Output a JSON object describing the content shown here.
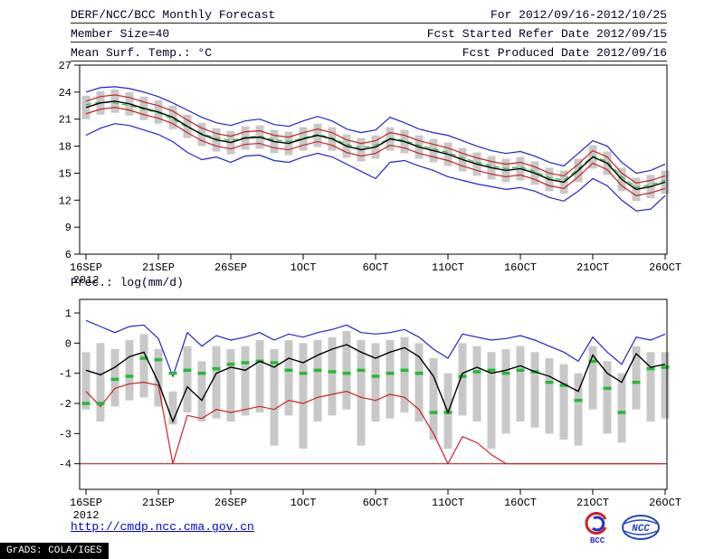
{
  "header": {
    "left": [
      "DERF/NCC/BCC Monthly Forecast",
      "Member Size=40",
      "Mean Surf. Temp.: °C"
    ],
    "right": [
      "For 2012/09/16-2012/10/25",
      "Fcst Started Refer Date 2012/09/15",
      "Fcst Produced Date 2012/09/16"
    ]
  },
  "footer": {
    "url": "http://cmdp.ncc.cma.gov.cn",
    "bcc_logo_label": "BCC",
    "ncc_logo_label": "NCC",
    "grads_credit": "GrADS: COLA/IGES"
  },
  "colors": {
    "blue": "#2222cc",
    "red": "#cc2222",
    "green": "#22bb33",
    "black": "#000000",
    "bar": "#c8c8c8",
    "frame": "#000000",
    "link": "#0000cc"
  },
  "chart_data": [
    {
      "id": "temperature",
      "type": "line",
      "title": "Mean Surf. Temp.: °C",
      "ylim": [
        6,
        27
      ],
      "yticks": [
        27,
        24,
        21,
        18,
        15,
        12,
        9,
        6
      ],
      "x_tick_days": [
        0,
        5,
        10,
        15,
        20,
        25,
        30,
        35,
        40
      ],
      "x_tick_labels": [
        "16SEP",
        "21SEP",
        "26SEP",
        "1OCT",
        "6OCT",
        "11OCT",
        "16OCT",
        "21OCT",
        "26OCT"
      ],
      "x_year_label": "2012",
      "grid": false,
      "bars": {
        "name": "ensemble-spread",
        "top": [
          23.6,
          24.1,
          24.3,
          24.0,
          23.5,
          23.1,
          22.5,
          21.5,
          20.6,
          20.0,
          19.7,
          20.2,
          20.3,
          19.8,
          19.6,
          20.1,
          20.5,
          20.1,
          19.3,
          18.9,
          19.2,
          20.1,
          19.8,
          19.2,
          18.8,
          18.4,
          17.8,
          17.3,
          16.9,
          16.6,
          16.8,
          16.3,
          15.6,
          15.3,
          16.6,
          18.1,
          17.4,
          15.6,
          14.5,
          14.8,
          15.3
        ],
        "bottom": [
          21.0,
          21.5,
          21.7,
          21.4,
          20.9,
          20.5,
          19.9,
          18.9,
          18.0,
          17.4,
          17.1,
          17.6,
          17.7,
          17.2,
          17.0,
          17.5,
          17.9,
          17.5,
          16.7,
          16.3,
          16.6,
          17.5,
          17.2,
          16.6,
          16.2,
          15.8,
          15.2,
          14.7,
          14.3,
          14.0,
          14.2,
          13.7,
          13.0,
          12.7,
          14.0,
          15.5,
          14.8,
          13.0,
          11.9,
          12.2,
          12.7
        ]
      },
      "series": [
        {
          "name": "ensemble-max",
          "color": "blue",
          "values": [
            24.0,
            24.5,
            24.6,
            24.4,
            24.0,
            23.5,
            22.8,
            22.0,
            21.2,
            20.6,
            20.3,
            20.8,
            21.0,
            20.4,
            20.2,
            20.8,
            21.3,
            20.8,
            19.9,
            19.5,
            19.8,
            21.2,
            20.6,
            19.9,
            19.5,
            19.2,
            18.6,
            18.0,
            17.5,
            17.2,
            17.4,
            16.9,
            16.2,
            15.8,
            17.2,
            18.6,
            18.0,
            16.2,
            15.0,
            15.3,
            16.0
          ]
        },
        {
          "name": "upper-spread",
          "color": "red",
          "values": [
            23.0,
            23.5,
            23.7,
            23.4,
            22.9,
            22.5,
            21.9,
            20.9,
            20.0,
            19.4,
            19.1,
            19.6,
            19.7,
            19.2,
            19.0,
            19.5,
            19.9,
            19.5,
            18.7,
            18.3,
            18.6,
            19.5,
            19.2,
            18.6,
            18.2,
            17.8,
            17.2,
            16.7,
            16.3,
            16.0,
            16.2,
            15.7,
            15.0,
            14.7,
            16.0,
            17.5,
            16.8,
            15.0,
            13.9,
            14.2,
            14.7
          ]
        },
        {
          "name": "climatology",
          "color": "green",
          "style": "dashed",
          "values": [
            22.6,
            22.9,
            22.8,
            22.5,
            22.1,
            21.7,
            21.0,
            20.1,
            19.4,
            18.9,
            18.6,
            19.0,
            19.1,
            18.7,
            18.5,
            18.9,
            19.3,
            18.9,
            18.2,
            17.8,
            18.1,
            18.9,
            18.6,
            18.1,
            17.7,
            17.3,
            16.7,
            16.2,
            15.8,
            15.5,
            15.7,
            15.2,
            14.5,
            14.2,
            15.5,
            16.9,
            16.3,
            14.6,
            13.4,
            13.7,
            14.2
          ]
        },
        {
          "name": "ensemble-mean",
          "color": "black",
          "values": [
            22.3,
            22.8,
            23.0,
            22.7,
            22.2,
            21.8,
            21.2,
            20.2,
            19.3,
            18.7,
            18.4,
            18.9,
            19.0,
            18.5,
            18.3,
            18.8,
            19.2,
            18.8,
            18.0,
            17.6,
            17.9,
            18.8,
            18.5,
            17.9,
            17.5,
            17.1,
            16.5,
            16.0,
            15.6,
            15.3,
            15.5,
            15.0,
            14.3,
            14.0,
            15.3,
            16.8,
            16.1,
            14.3,
            13.2,
            13.5,
            14.0
          ]
        },
        {
          "name": "lower-spread",
          "color": "red",
          "values": [
            21.6,
            22.1,
            22.3,
            22.0,
            21.5,
            21.1,
            20.5,
            19.5,
            18.6,
            18.0,
            17.7,
            18.2,
            18.3,
            17.8,
            17.6,
            18.1,
            18.5,
            18.1,
            17.3,
            16.9,
            17.2,
            18.1,
            17.8,
            17.2,
            16.8,
            16.4,
            15.8,
            15.3,
            14.9,
            14.6,
            14.8,
            14.3,
            13.6,
            13.3,
            14.6,
            16.1,
            15.4,
            13.6,
            12.5,
            12.8,
            13.3
          ]
        },
        {
          "name": "ensemble-min",
          "color": "blue",
          "values": [
            19.2,
            20.0,
            20.5,
            20.3,
            19.8,
            19.3,
            18.5,
            17.3,
            16.5,
            16.8,
            16.2,
            16.9,
            17.0,
            16.4,
            16.2,
            16.8,
            17.2,
            16.8,
            16.0,
            15.2,
            14.4,
            16.2,
            16.4,
            15.8,
            15.3,
            14.6,
            14.2,
            13.8,
            13.5,
            13.2,
            13.4,
            13.0,
            12.3,
            11.9,
            13.0,
            14.4,
            13.6,
            12.0,
            10.8,
            11.0,
            12.5
          ]
        }
      ]
    },
    {
      "id": "precipitation",
      "type": "line",
      "title": "Prec.: log(mm/d)",
      "ylim": [
        -4,
        1
      ],
      "yticks": [
        1,
        0,
        -1,
        -2,
        -3,
        -4
      ],
      "x_tick_days": [
        0,
        5,
        10,
        15,
        20,
        25,
        30,
        35,
        40
      ],
      "x_tick_labels": [
        "16SEP",
        "21SEP",
        "26SEP",
        "1OCT",
        "6OCT",
        "11OCT",
        "16OCT",
        "21OCT",
        "26OCT"
      ],
      "x_year_label": "2012",
      "grid": false,
      "bars": {
        "name": "ensemble-spread",
        "top": [
          -0.3,
          0.0,
          -0.2,
          0.1,
          0.3,
          -0.2,
          -1.6,
          -0.1,
          -0.6,
          -0.1,
          -0.2,
          -0.1,
          0.1,
          -0.2,
          0.1,
          0.0,
          0.1,
          0.2,
          0.4,
          0.1,
          0.0,
          0.1,
          0.2,
          0.0,
          -0.5,
          -1.0,
          0.0,
          -0.1,
          -0.3,
          -0.2,
          -0.1,
          -0.3,
          -0.5,
          -0.7,
          -1.0,
          -0.1,
          -0.6,
          -1.0,
          -0.1,
          -0.3,
          -0.3
        ],
        "bottom": [
          -2.2,
          -2.6,
          -2.1,
          -1.9,
          -1.8,
          -2.1,
          -2.7,
          -2.3,
          -2.6,
          -2.5,
          -2.6,
          -2.4,
          -2.3,
          -3.4,
          -2.4,
          -3.5,
          -2.6,
          -2.4,
          -2.2,
          -3.4,
          -2.6,
          -2.5,
          -2.3,
          -2.6,
          -3.2,
          -3.5,
          -2.4,
          -2.6,
          -3.5,
          -3.0,
          -2.6,
          -2.8,
          -3.0,
          -3.2,
          -3.4,
          -2.2,
          -3.0,
          -3.3,
          -2.2,
          -2.6,
          -2.5
        ]
      },
      "series": [
        {
          "name": "ensemble-max",
          "color": "blue",
          "values": [
            0.75,
            0.55,
            0.35,
            0.55,
            0.6,
            0.15,
            -1.1,
            0.35,
            -0.1,
            0.25,
            0.1,
            0.2,
            0.35,
            0.1,
            0.3,
            0.2,
            0.35,
            0.45,
            0.6,
            0.35,
            0.3,
            0.35,
            0.45,
            0.2,
            -0.2,
            -0.5,
            0.3,
            0.2,
            0.1,
            0.15,
            0.25,
            0.1,
            -0.1,
            -0.3,
            -0.6,
            0.2,
            -0.3,
            -0.7,
            0.2,
            0.1,
            0.3
          ]
        },
        {
          "name": "ensemble-min",
          "color": "red",
          "values": [
            -1.6,
            -2.1,
            -1.5,
            -1.35,
            -1.3,
            -1.4,
            -4.0,
            -2.4,
            -2.5,
            -2.2,
            -2.3,
            -2.2,
            -2.1,
            -2.2,
            -1.9,
            -2.0,
            -1.8,
            -1.7,
            -1.6,
            -1.8,
            -1.9,
            -1.7,
            -1.8,
            -2.2,
            -3.0,
            -4.0,
            -3.1,
            -3.3,
            -3.7,
            -4.0,
            -4.0,
            -4.0,
            -4.0,
            -4.0,
            -4.0,
            -4.0,
            -4.0,
            -4.0,
            -4.0,
            -4.0,
            -4.0
          ]
        },
        {
          "name": "floor-line",
          "color": "red",
          "constant": -4
        },
        {
          "name": "climatology",
          "color": "green",
          "style": "marker",
          "values": [
            -2.0,
            -2.0,
            -1.2,
            -1.1,
            -0.5,
            -0.55,
            -1.0,
            -0.9,
            -1.0,
            -0.85,
            -0.7,
            -0.65,
            -0.6,
            -0.65,
            -0.9,
            -1.0,
            -0.9,
            -0.95,
            -1.0,
            -0.9,
            -1.1,
            -1.0,
            -0.9,
            -1.0,
            -2.3,
            -2.3,
            -1.1,
            -0.95,
            -0.9,
            -1.0,
            -0.9,
            -0.95,
            -1.3,
            -1.4,
            -1.9,
            -0.6,
            -1.5,
            -2.3,
            -1.3,
            -0.85,
            -0.8
          ]
        },
        {
          "name": "ensemble-mean",
          "color": "black",
          "values": [
            -0.9,
            -1.05,
            -0.8,
            -0.45,
            -0.3,
            -1.3,
            -2.6,
            -1.45,
            -1.9,
            -1.0,
            -0.8,
            -0.9,
            -0.6,
            -0.8,
            -0.5,
            -0.65,
            -0.4,
            -0.2,
            -0.05,
            -0.3,
            -0.5,
            -0.3,
            -0.15,
            -0.45,
            -1.1,
            -2.3,
            -1.0,
            -0.8,
            -1.0,
            -0.9,
            -0.75,
            -0.95,
            -1.1,
            -1.35,
            -1.6,
            -0.4,
            -1.0,
            -1.3,
            -0.35,
            -0.8,
            -0.7
          ]
        }
      ]
    }
  ]
}
